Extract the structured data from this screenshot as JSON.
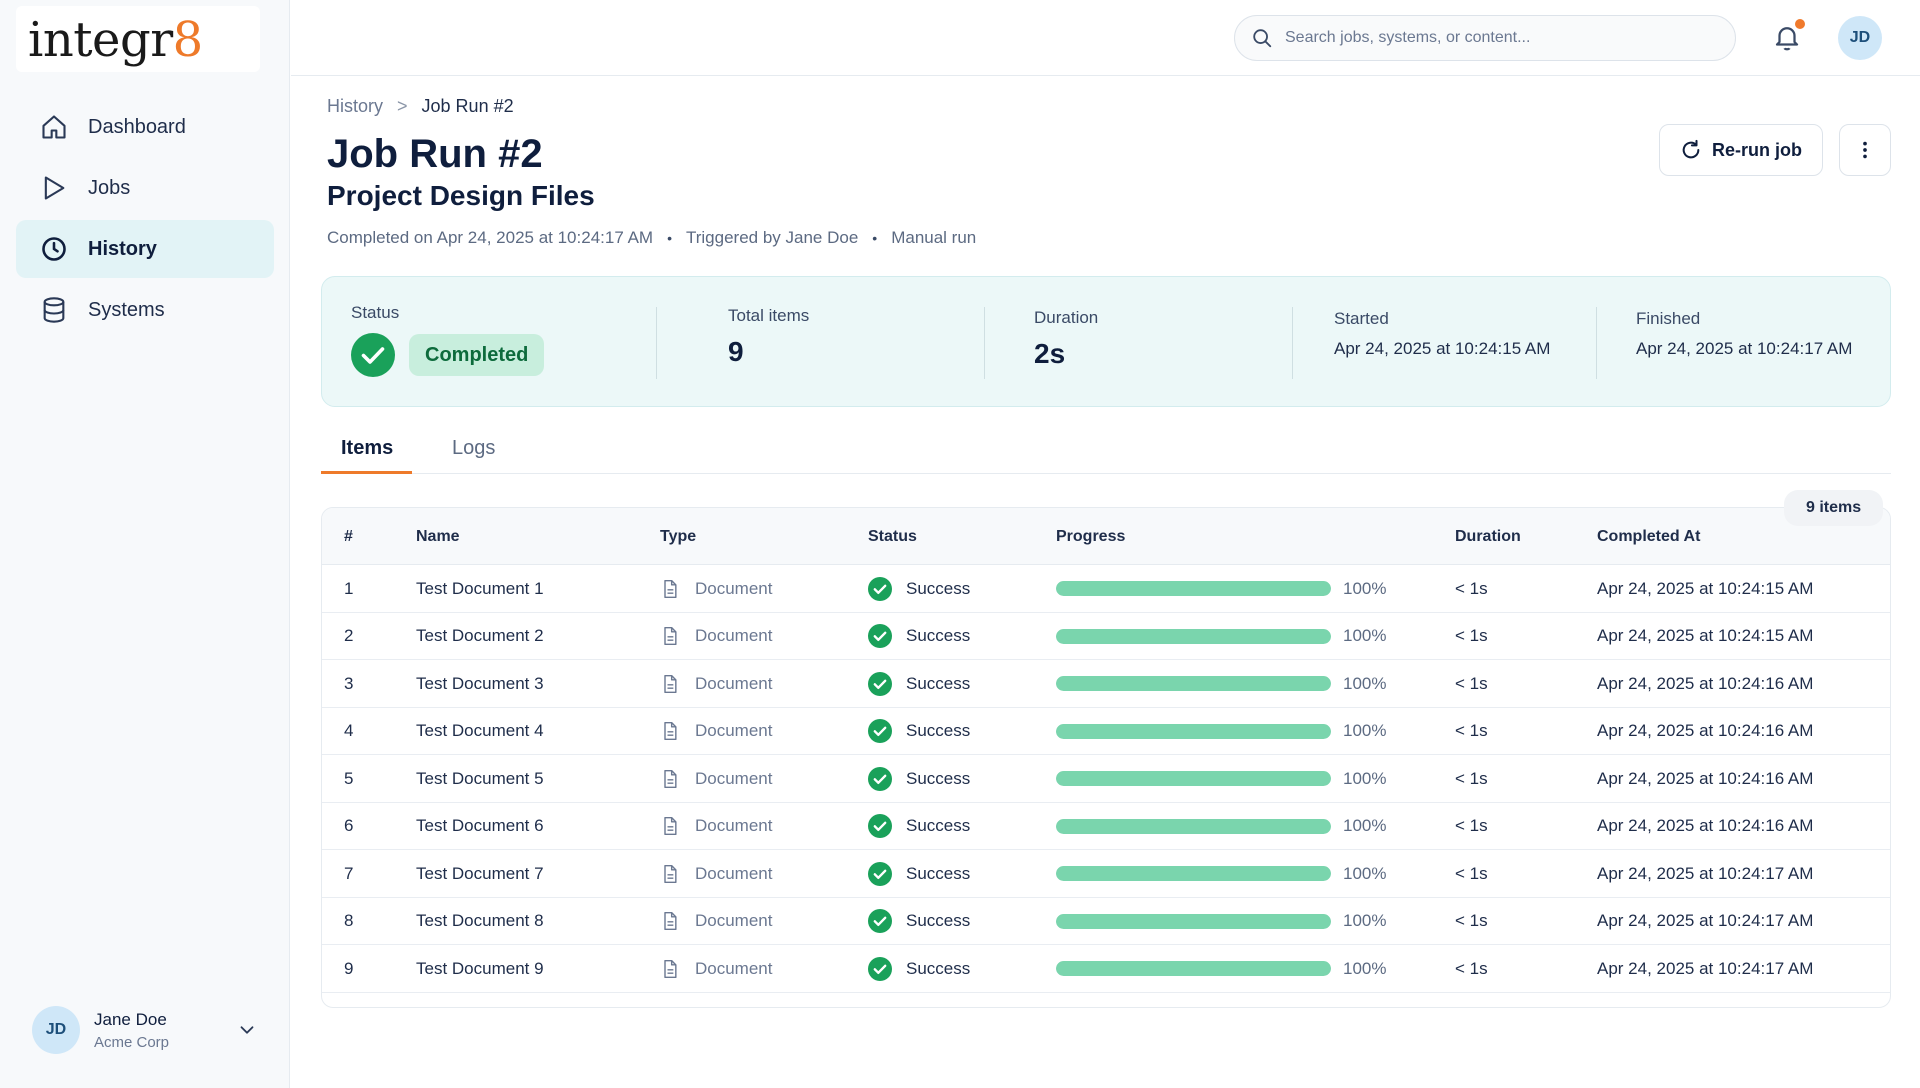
{
  "logo": {
    "text": "integr",
    "accent": "8"
  },
  "nav": [
    {
      "label": "Dashboard",
      "icon": "home-icon",
      "active": false
    },
    {
      "label": "Jobs",
      "icon": "play-icon",
      "active": false
    },
    {
      "label": "History",
      "icon": "clock-icon",
      "active": true
    },
    {
      "label": "Systems",
      "icon": "database-icon",
      "active": false
    }
  ],
  "user": {
    "initials": "JD",
    "name": "Jane Doe",
    "org": "Acme Corp"
  },
  "search": {
    "placeholder": "Search jobs, systems, or content..."
  },
  "top_avatar": "JD",
  "breadcrumb": {
    "parent": "History",
    "sep": ">",
    "current": "Job Run #2"
  },
  "page": {
    "title": "Job Run #2",
    "subtitle": "Project Design Files",
    "completed_on": "Completed on Apr 24, 2025 at 10:24:17 AM",
    "triggered_by": "Triggered by Jane Doe",
    "run_type": "Manual run",
    "dot": "•"
  },
  "actions": {
    "rerun_label": "Re-run job"
  },
  "summary": {
    "status_label": "Status",
    "status_value": "Completed",
    "total_label": "Total items",
    "total_value": "9",
    "duration_label": "Duration",
    "duration_value": "2s",
    "started_label": "Started",
    "started_value": "Apr 24, 2025 at 10:24:15 AM",
    "finished_label": "Finished",
    "finished_value": "Apr 24, 2025 at 10:24:17 AM"
  },
  "tabs": [
    {
      "label": "Items",
      "active": true
    },
    {
      "label": "Logs",
      "active": false
    }
  ],
  "table": {
    "count_label": "9 items",
    "headers": [
      "#",
      "Name",
      "Type",
      "Status",
      "Progress",
      "Duration",
      "Completed At"
    ],
    "rows": [
      {
        "n": "1",
        "name": "Test Document 1",
        "type": "Document",
        "status": "Success",
        "progress": 1.0,
        "progress_label": "100%",
        "duration": "< 1s",
        "completed": "Apr 24, 2025 at 10:24:15 AM"
      },
      {
        "n": "2",
        "name": "Test Document 2",
        "type": "Document",
        "status": "Success",
        "progress": 1.0,
        "progress_label": "100%",
        "duration": "< 1s",
        "completed": "Apr 24, 2025 at 10:24:15 AM"
      },
      {
        "n": "3",
        "name": "Test Document 3",
        "type": "Document",
        "status": "Success",
        "progress": 1.0,
        "progress_label": "100%",
        "duration": "< 1s",
        "completed": "Apr 24, 2025 at 10:24:16 AM"
      },
      {
        "n": "4",
        "name": "Test Document 4",
        "type": "Document",
        "status": "Success",
        "progress": 1.0,
        "progress_label": "100%",
        "duration": "< 1s",
        "completed": "Apr 24, 2025 at 10:24:16 AM"
      },
      {
        "n": "5",
        "name": "Test Document 5",
        "type": "Document",
        "status": "Success",
        "progress": 1.0,
        "progress_label": "100%",
        "duration": "< 1s",
        "completed": "Apr 24, 2025 at 10:24:16 AM"
      },
      {
        "n": "6",
        "name": "Test Document 6",
        "type": "Document",
        "status": "Success",
        "progress": 1.0,
        "progress_label": "100%",
        "duration": "< 1s",
        "completed": "Apr 24, 2025 at 10:24:16 AM"
      },
      {
        "n": "7",
        "name": "Test Document 7",
        "type": "Document",
        "status": "Success",
        "progress": 1.0,
        "progress_label": "100%",
        "duration": "< 1s",
        "completed": "Apr 24, 2025 at 10:24:17 AM"
      },
      {
        "n": "8",
        "name": "Test Document 8",
        "type": "Document",
        "status": "Success",
        "progress": 1.0,
        "progress_label": "100%",
        "duration": "< 1s",
        "completed": "Apr 24, 2025 at 10:24:17 AM"
      },
      {
        "n": "9",
        "name": "Test Document 9",
        "type": "Document",
        "status": "Success",
        "progress": 1.0,
        "progress_label": "100%",
        "duration": "< 1s",
        "completed": "Apr 24, 2025 at 10:24:17 AM"
      }
    ]
  },
  "colors": {
    "accent": "#ee7a2a",
    "success": "#1aa15a",
    "progress": "#7ad5ad",
    "active_nav": "#e2f3f6"
  }
}
